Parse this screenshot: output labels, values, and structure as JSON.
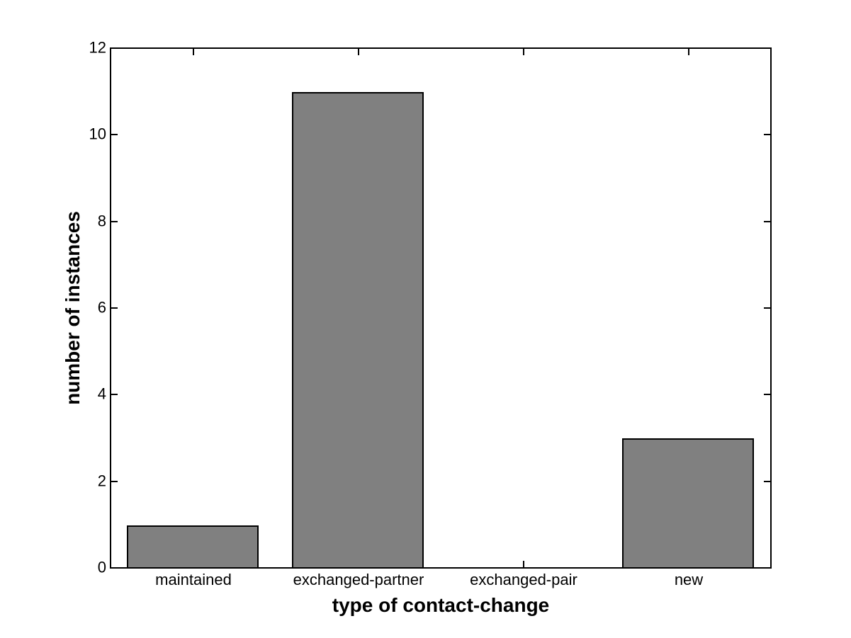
{
  "chart_data": {
    "type": "bar",
    "categories": [
      "maintained",
      "exchanged-partner",
      "exchanged-pair",
      "new"
    ],
    "values": [
      1,
      11,
      0,
      3
    ],
    "title": "",
    "xlabel": "type of contact-change",
    "ylabel": "number of instances",
    "ylim": [
      0,
      12
    ],
    "yticks": [
      0,
      2,
      4,
      6,
      8,
      10,
      12
    ],
    "bar_width_fraction": 0.8,
    "grid": false,
    "legend": "none",
    "colors": {
      "bar_fill": "#808080",
      "bar_edge": "#000000",
      "axis": "#000000",
      "background": "#ffffff",
      "text": "#000000"
    }
  }
}
